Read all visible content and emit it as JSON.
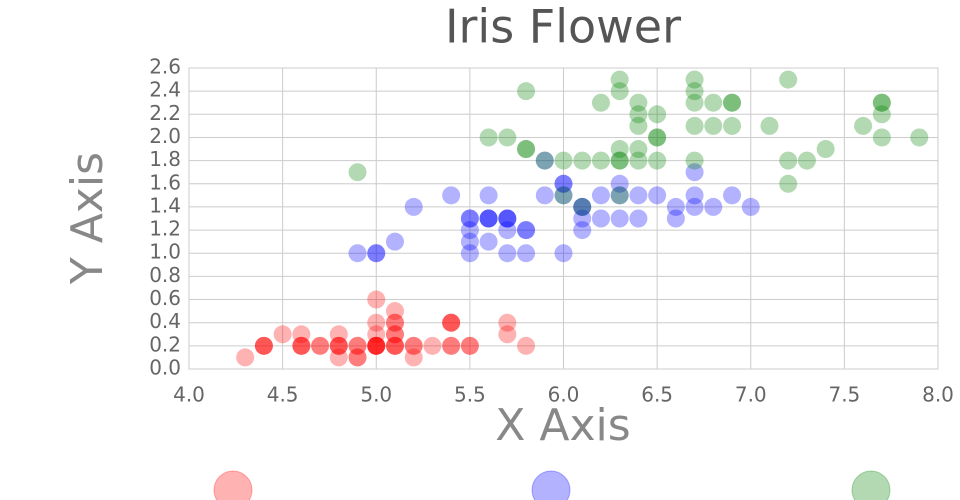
{
  "chart_data": {
    "type": "scatter",
    "title": "Iris Flower",
    "x_label": "X Axis",
    "y_label": "Y Axis",
    "xlim": [
      4.0,
      8.0
    ],
    "xticks": [
      {
        "value": 4.0,
        "label": "4.0"
      },
      4.5,
      {
        "value": 5.0,
        "label": "5.0"
      },
      5.5,
      {
        "value": 6.0,
        "label": "6.0"
      },
      6.5,
      {
        "value": 7.0,
        "label": "7.0"
      },
      7.5,
      {
        "value": 8.0,
        "label": "8.0"
      }
    ],
    "ylim": [
      0.0,
      2.6
    ],
    "yticks": [
      {
        "value": 0.0,
        "label": "0.0"
      },
      0.2,
      0.4,
      0.6,
      0.8,
      {
        "value": 1.0,
        "label": "1.0"
      },
      1.2,
      1.4,
      1.6,
      1.8,
      {
        "value": 2.0,
        "label": "2.0"
      },
      2.2,
      2.4,
      2.6
    ],
    "grid": true,
    "series": [
      {
        "color": "#ff0000",
        "x": [
          5.1,
          4.9,
          4.7,
          4.6,
          5.0,
          5.4,
          4.6,
          5.0,
          4.4,
          4.9,
          5.4,
          4.8,
          4.8,
          4.3,
          5.8,
          5.7,
          5.4,
          5.1,
          5.7,
          5.1,
          5.4,
          5.1,
          4.6,
          5.1,
          4.8,
          5.0,
          5.0,
          5.2,
          5.2,
          4.7,
          4.8,
          5.4,
          5.2,
          5.5,
          4.9,
          5.0,
          5.5,
          4.9,
          4.4,
          5.1,
          5.0,
          4.5,
          4.4,
          5.0,
          5.1,
          4.8,
          5.1,
          4.6,
          5.3,
          5.0
        ],
        "values": [
          0.2,
          0.2,
          0.2,
          0.2,
          0.2,
          0.4,
          0.3,
          0.2,
          0.2,
          0.1,
          0.2,
          0.2,
          0.1,
          0.1,
          0.2,
          0.4,
          0.4,
          0.3,
          0.3,
          0.3,
          0.2,
          0.4,
          0.2,
          0.5,
          0.2,
          0.2,
          0.4,
          0.2,
          0.2,
          0.2,
          0.2,
          0.4,
          0.1,
          0.2,
          0.2,
          0.2,
          0.2,
          0.1,
          0.2,
          0.2,
          0.3,
          0.3,
          0.2,
          0.6,
          0.4,
          0.3,
          0.2,
          0.2,
          0.2,
          0.2
        ]
      },
      {
        "color": "#0000ff",
        "x": [
          7.0,
          6.4,
          6.9,
          5.5,
          6.5,
          5.7,
          6.3,
          4.9,
          6.6,
          5.2,
          5.0,
          5.9,
          6.0,
          6.1,
          5.6,
          6.7,
          5.6,
          5.8,
          6.2,
          5.6,
          5.9,
          6.1,
          6.3,
          6.1,
          6.4,
          6.6,
          6.8,
          6.7,
          6.0,
          5.7,
          5.5,
          5.5,
          5.8,
          6.0,
          5.4,
          6.0,
          6.7,
          6.3,
          5.6,
          5.5,
          5.5,
          6.1,
          5.8,
          5.0,
          5.6,
          5.7,
          5.7,
          6.2,
          5.1,
          5.7
        ],
        "values": [
          1.4,
          1.5,
          1.5,
          1.3,
          1.5,
          1.3,
          1.6,
          1.0,
          1.3,
          1.4,
          1.0,
          1.5,
          1.0,
          1.4,
          1.3,
          1.4,
          1.5,
          1.0,
          1.5,
          1.1,
          1.8,
          1.3,
          1.5,
          1.2,
          1.3,
          1.4,
          1.4,
          1.7,
          1.5,
          1.0,
          1.1,
          1.0,
          1.2,
          1.6,
          1.5,
          1.6,
          1.5,
          1.3,
          1.3,
          1.3,
          1.2,
          1.4,
          1.2,
          1.0,
          1.3,
          1.2,
          1.3,
          1.3,
          1.1,
          1.3
        ]
      },
      {
        "color": "#008000",
        "x": [
          6.3,
          5.8,
          7.1,
          6.3,
          6.5,
          7.6,
          4.9,
          7.3,
          6.7,
          7.2,
          6.5,
          6.4,
          6.8,
          5.7,
          5.8,
          6.4,
          6.5,
          7.7,
          7.7,
          6.0,
          6.9,
          5.6,
          7.7,
          6.3,
          6.7,
          7.2,
          6.2,
          6.1,
          6.4,
          7.2,
          7.4,
          7.9,
          6.4,
          6.3,
          6.1,
          7.7,
          6.3,
          6.4,
          6.0,
          6.9,
          6.7,
          6.9,
          5.8,
          6.8,
          6.7,
          6.7,
          6.3,
          6.5,
          6.2,
          5.9
        ],
        "values": [
          2.5,
          1.9,
          2.1,
          1.8,
          2.2,
          2.1,
          1.7,
          1.8,
          1.8,
          2.5,
          2.0,
          1.9,
          2.1,
          2.0,
          2.4,
          2.3,
          1.8,
          2.2,
          2.3,
          1.5,
          2.3,
          2.0,
          2.0,
          1.8,
          2.1,
          1.8,
          1.8,
          1.8,
          2.1,
          1.6,
          1.9,
          2.0,
          2.2,
          1.5,
          1.4,
          2.3,
          2.4,
          1.8,
          1.8,
          2.1,
          2.4,
          2.3,
          1.9,
          2.3,
          2.5,
          2.3,
          1.9,
          2.0,
          2.3,
          1.8
        ]
      }
    ]
  }
}
